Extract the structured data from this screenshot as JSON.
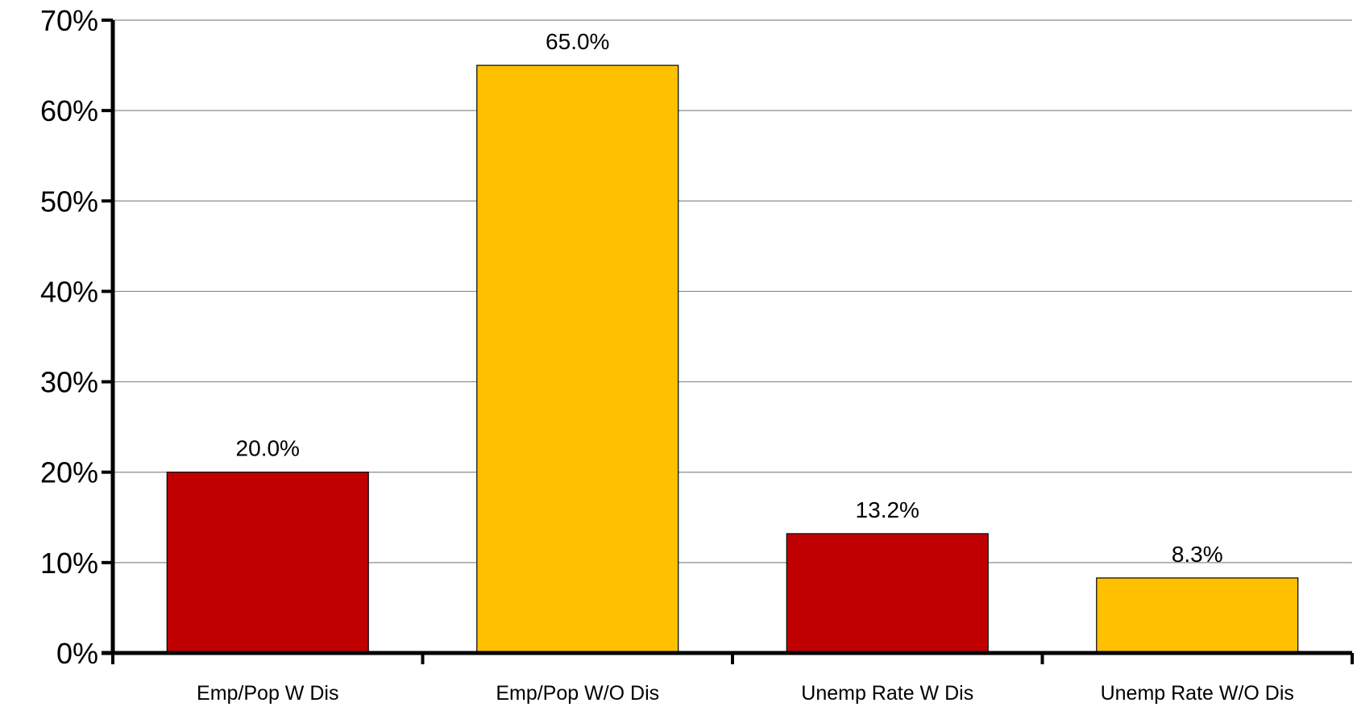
{
  "chart_data": {
    "type": "bar",
    "categories": [
      "Emp/Pop W Dis",
      "Emp/Pop W/O Dis",
      "Unemp Rate W Dis",
      "Unemp Rate W/O Dis"
    ],
    "values": [
      20.0,
      65.0,
      13.2,
      8.3
    ],
    "data_labels": [
      "20.0%",
      "65.0%",
      "13.2%",
      "8.3%"
    ],
    "bar_colors": [
      "#c00000",
      "#ffc000",
      "#c00000",
      "#ffc000"
    ],
    "title": "",
    "xlabel": "",
    "ylabel": "",
    "ylim": [
      0,
      70
    ],
    "yticks": [
      0,
      10,
      20,
      30,
      40,
      50,
      60,
      70
    ],
    "ytick_labels": [
      "0%",
      "10%",
      "20%",
      "30%",
      "40%",
      "50%",
      "60%",
      "70%"
    ],
    "grid": true,
    "legend": "none"
  }
}
